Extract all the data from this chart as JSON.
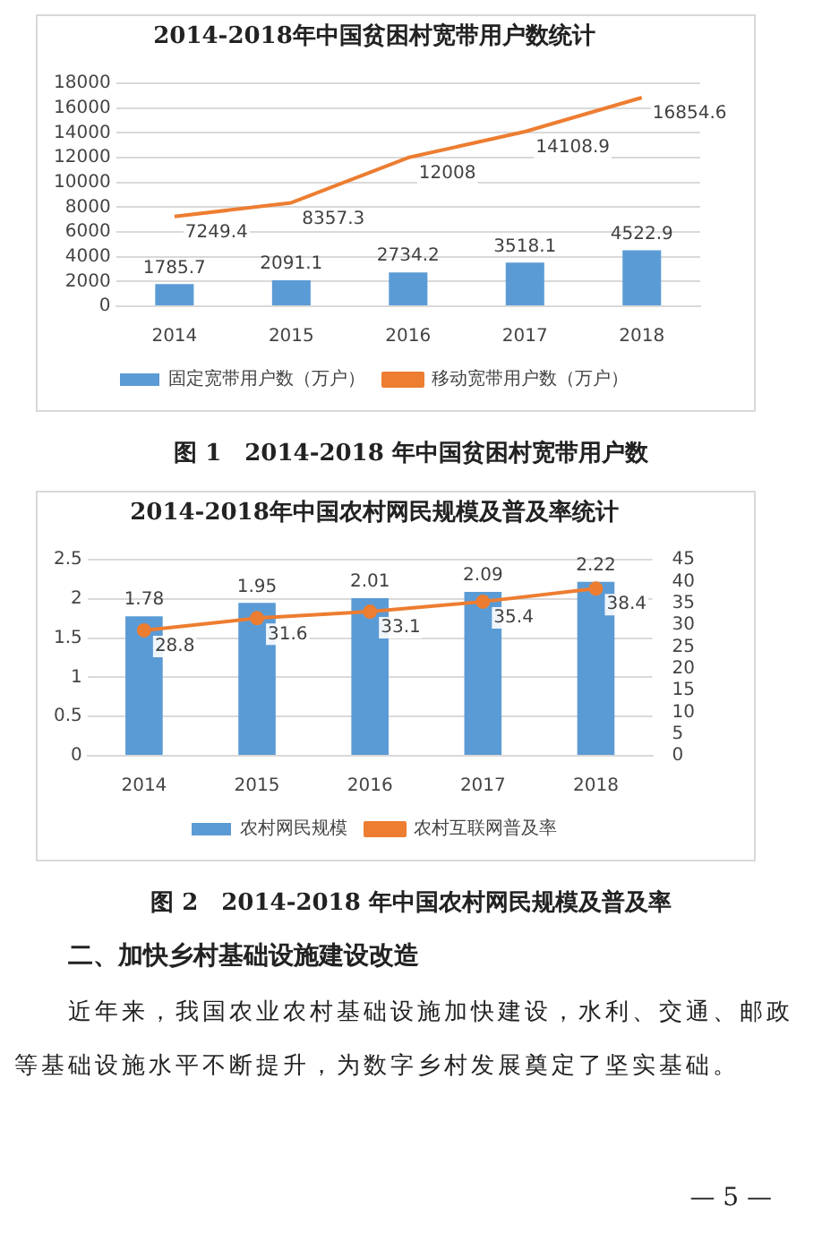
{
  "chart_data": [
    {
      "type": "bar",
      "title": "2014-2018年中国贫困村宽带用户数统计",
      "categories": [
        "2014",
        "2015",
        "2016",
        "2017",
        "2018"
      ],
      "series": [
        {
          "name": "固定宽带用户数（万户）",
          "color": "#5b9bd5",
          "values": [
            1785.7,
            2091.1,
            2734.2,
            3518.1,
            4522.9
          ]
        },
        {
          "name": "移动宽带用户数（万户）",
          "type": "line",
          "color": "#ed7d31",
          "marker": "none",
          "values": [
            7249.4,
            8357.3,
            12008,
            14108.9,
            16854.6
          ]
        }
      ],
      "ylim": [
        0,
        18000
      ],
      "yticks": [
        0,
        2000,
        4000,
        6000,
        8000,
        10000,
        12000,
        14000,
        16000,
        18000
      ],
      "grid": "y",
      "legend": "bottom",
      "data_labels": true,
      "annotations": [
        "图 1　2014-2018 年中国贫困村宽带用户数"
      ]
    },
    {
      "type": "bar",
      "title": "2014-2018年中国农村网民规模及普及率统计",
      "categories": [
        "2014",
        "2015",
        "2016",
        "2017",
        "2018"
      ],
      "series": [
        {
          "name": "农村网民规模",
          "color": "#5b9bd5",
          "values": [
            1.78,
            1.95,
            2.01,
            2.09,
            2.22
          ]
        },
        {
          "name": "农村互联网普及率",
          "type": "line",
          "axis": "y2",
          "color": "#ed7d31",
          "marker": "circle",
          "values": [
            28.8,
            31.6,
            33.1,
            35.4,
            38.4
          ]
        }
      ],
      "ylim": [
        0,
        2.5
      ],
      "yticks": [
        0,
        0.5,
        1,
        1.5,
        2,
        2.5
      ],
      "y2lim": [
        0,
        45
      ],
      "y2ticks": [
        0,
        5,
        10,
        15,
        20,
        25,
        30,
        35,
        40,
        45
      ],
      "grid": "y",
      "legend": "bottom",
      "data_labels": true,
      "annotations": [
        "图 2　2014-2018 年中国农村网民规模及普及率",
        "二、加快乡村基础设施建设改造",
        "近年来，我国农业农村基础设施加快建设，水利、交通、邮政等基础设施水平不断提升，为数字乡村发展奠定了坚实基础。",
        "— 5 —"
      ]
    }
  ]
}
